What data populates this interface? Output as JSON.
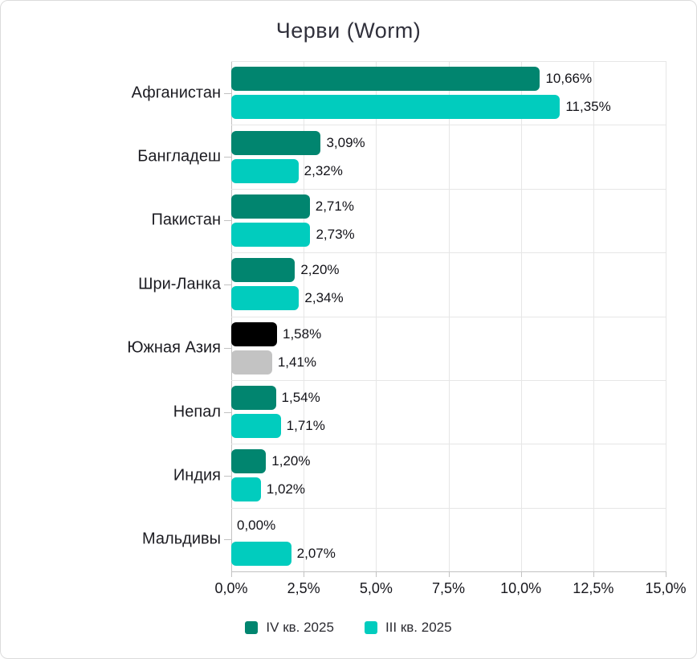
{
  "title": "Черви (Worm)",
  "chart_data": {
    "type": "bar",
    "orientation": "horizontal",
    "title": "Черви (Worm)",
    "xlim": [
      0,
      15
    ],
    "x_tick_labels": [
      "0,0%",
      "2,5%",
      "5,0%",
      "7,5%",
      "10,0%",
      "12,5%",
      "15,0%"
    ],
    "grid": true,
    "legend_position": "bottom",
    "categories": [
      "Афганистан",
      "Бангладеш",
      "Пакистан",
      "Шри-Ланка",
      "Южная Азия",
      "Непал",
      "Индия",
      "Мальдивы"
    ],
    "series": [
      {
        "name": "IV кв. 2025",
        "color": "#01856F",
        "values": [
          10.66,
          3.09,
          2.71,
          2.2,
          1.58,
          1.54,
          1.2,
          0.0
        ],
        "labels": [
          "10,66%",
          "3,09%",
          "2,71%",
          "2,20%",
          "1,58%",
          "1,54%",
          "1,20%",
          "0,00%"
        ]
      },
      {
        "name": "III кв. 2025",
        "color": "#01CCBE",
        "values": [
          11.35,
          2.32,
          2.73,
          2.34,
          1.41,
          1.71,
          1.02,
          2.07
        ],
        "labels": [
          "11,35%",
          "2,32%",
          "2,73%",
          "2,34%",
          "1,41%",
          "1,71%",
          "1,02%",
          "2,07%"
        ]
      }
    ],
    "highlight_category": {
      "name": "Южная Азия",
      "colors": [
        "#000000",
        "#C3C3C3"
      ]
    },
    "style_colors": {
      "grid": "#E6E6E6",
      "axis": "#C2C2C2",
      "text": "#16161C",
      "title": "#30303B"
    }
  },
  "legend": {
    "items": [
      {
        "label": "IV кв. 2025",
        "color": "#01856F"
      },
      {
        "label": "III кв. 2025",
        "color": "#01CCBE"
      }
    ]
  }
}
